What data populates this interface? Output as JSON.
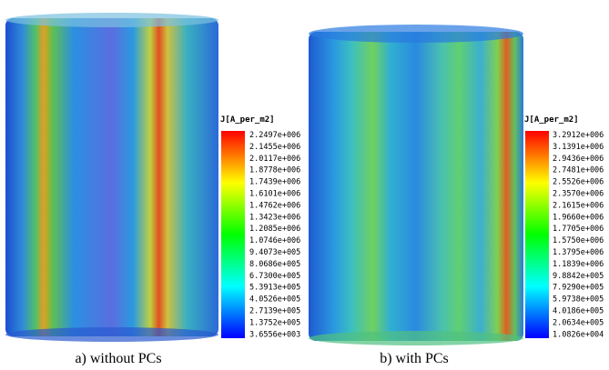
{
  "panels": [
    {
      "legend_title": "J[A_per_m2]",
      "legend_labels": [
        "2.2497e+006",
        "2.1455e+006",
        "2.0117e+006",
        "1.8778e+006",
        "1.7439e+006",
        "1.6101e+006",
        "1.4762e+006",
        "1.3423e+006",
        "1.2085e+006",
        "1.0746e+006",
        "9.4073e+005",
        "8.0686e+005",
        "6.7300e+005",
        "5.3913e+005",
        "4.0526e+005",
        "2.7139e+005",
        "1.3752e+005",
        "3.6556e+003"
      ],
      "caption": "a) without PCs"
    },
    {
      "legend_title": "J[A_per_m2]",
      "legend_labels": [
        "3.2912e+006",
        "3.1391e+006",
        "2.9436e+006",
        "2.7481e+006",
        "2.5526e+006",
        "2.3570e+006",
        "2.1615e+006",
        "1.9660e+006",
        "1.7705e+006",
        "1.5750e+006",
        "1.3795e+006",
        "1.1839e+006",
        "9.8842e+005",
        "7.9290e+005",
        "5.9738e+005",
        "4.0186e+005",
        "2.0634e+005",
        "1.0826e+004"
      ],
      "caption": "b) with PCs"
    }
  ]
}
